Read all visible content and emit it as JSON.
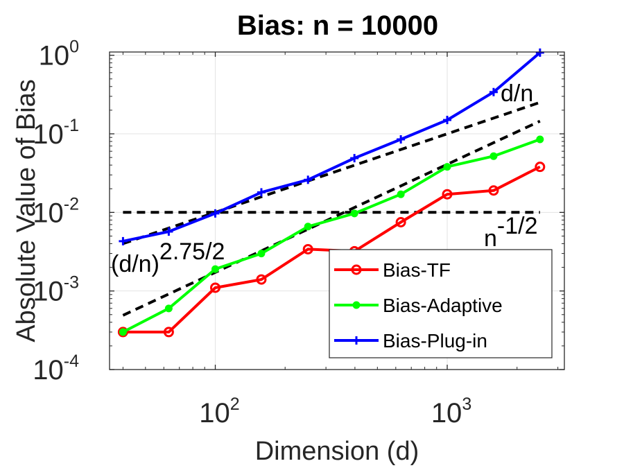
{
  "chart_data": {
    "type": "line",
    "scale": "log-log",
    "title": "Bias: n = 10000",
    "xlabel": "Dimension (d)",
    "ylabel": "Absolute Value of Bias",
    "xlim": [
      35,
      3200
    ],
    "ylim": [
      0.0001,
      1.1
    ],
    "x_ticks": [
      {
        "base": "10",
        "exp": "2",
        "value": 100
      },
      {
        "base": "10",
        "exp": "3",
        "value": 1000
      }
    ],
    "y_ticks": [
      {
        "base": "10",
        "exp": "0",
        "value": 1
      },
      {
        "base": "10",
        "exp": "-1",
        "value": 0.1
      },
      {
        "base": "10",
        "exp": "-2",
        "value": 0.01
      },
      {
        "base": "10",
        "exp": "-3",
        "value": 0.001
      },
      {
        "base": "10",
        "exp": "-4",
        "value": 0.0001
      }
    ],
    "grid": true,
    "legend_position": "bottom-right",
    "x": [
      40,
      63,
      100,
      158,
      251,
      398,
      631,
      1000,
      1585,
      2512
    ],
    "series": [
      {
        "name": "Bias-TF",
        "color": "#ff0000",
        "marker": "circle-open",
        "values": [
          0.0003,
          0.0003,
          0.0011,
          0.0014,
          0.0034,
          0.0032,
          0.0075,
          0.017,
          0.019,
          0.038
        ]
      },
      {
        "name": "Bias-Adaptive",
        "color": "#00ff00",
        "marker": "dot",
        "values": [
          0.0003,
          0.0006,
          0.0019,
          0.003,
          0.0066,
          0.0097,
          0.017,
          0.038,
          0.052,
          0.085
        ]
      },
      {
        "name": "Bias-Plug-in",
        "color": "#0000ff",
        "marker": "plus",
        "values": [
          0.0043,
          0.0057,
          0.0097,
          0.018,
          0.026,
          0.049,
          0.085,
          0.15,
          0.34,
          1.08
        ]
      }
    ],
    "reference_lines": [
      {
        "name": "d/n",
        "label": "d/n",
        "style": "dashed",
        "color": "#000000",
        "x": [
          40,
          2512
        ],
        "values": [
          0.004,
          0.2512
        ]
      },
      {
        "name": "(d/n)^{2.75/2}",
        "label_base": "(d/n)",
        "label_exp": "2.75/2",
        "style": "dashed",
        "color": "#000000",
        "x": [
          40,
          2512
        ],
        "values": [
          0.00049,
          0.145
        ]
      },
      {
        "name": "n^{-1/2}",
        "label_base": "n",
        "label_exp": "-1/2",
        "style": "dashed",
        "color": "#000000",
        "x": [
          40,
          2512
        ],
        "values": [
          0.01,
          0.01
        ]
      }
    ]
  }
}
